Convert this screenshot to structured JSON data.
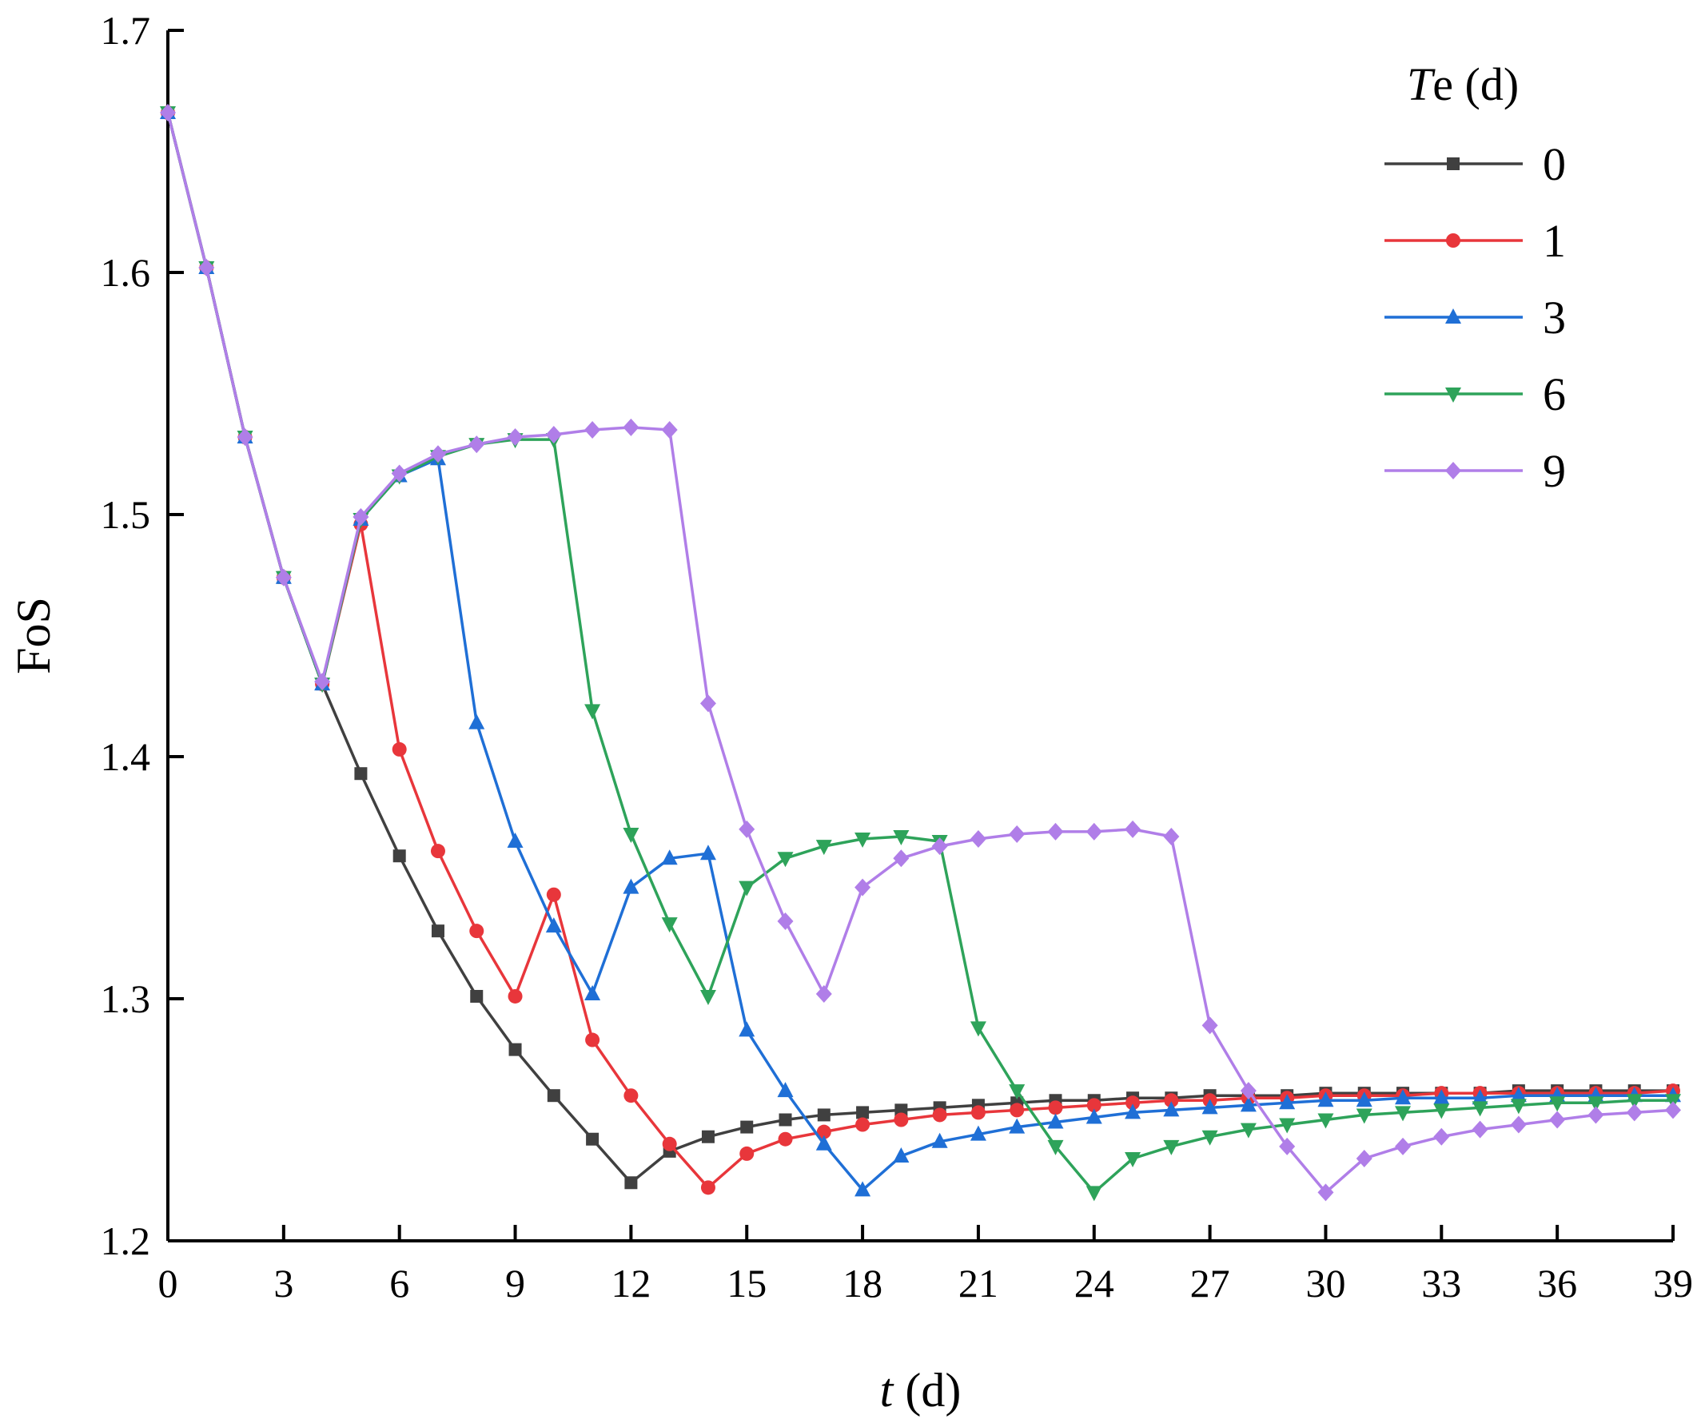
{
  "chart_data": {
    "type": "line",
    "xlabel_italic": "t",
    "xlabel_rest": " (d)",
    "ylabel": "FoS",
    "xlim": [
      0,
      39
    ],
    "ylim": [
      1.2,
      1.7
    ],
    "xticks": [
      0,
      3,
      6,
      9,
      12,
      15,
      18,
      21,
      24,
      27,
      30,
      33,
      36,
      39
    ],
    "yticks": [
      1.2,
      1.3,
      1.4,
      1.5,
      1.6,
      1.7
    ],
    "ytick_labels": [
      "1.2",
      "1.3",
      "1.4",
      "1.5",
      "1.6",
      "1.7"
    ],
    "grid": false,
    "legend_position": "top-right",
    "legend_title_italic": "T",
    "legend_title_rest": "e (d)",
    "x": [
      0,
      1,
      2,
      3,
      4,
      5,
      6,
      7,
      8,
      9,
      10,
      11,
      12,
      13,
      14,
      15,
      16,
      17,
      18,
      19,
      20,
      21,
      22,
      23,
      24,
      25,
      26,
      27,
      28,
      29,
      30,
      31,
      32,
      33,
      34,
      35,
      36,
      37,
      38,
      39
    ],
    "series": [
      {
        "name": "0",
        "color": "#404040",
        "marker": "square",
        "values": [
          1.666,
          1.602,
          1.532,
          1.474,
          1.43,
          1.393,
          1.359,
          1.328,
          1.301,
          1.279,
          1.26,
          1.242,
          1.224,
          1.237,
          1.243,
          1.247,
          1.25,
          1.252,
          1.253,
          1.254,
          1.255,
          1.256,
          1.257,
          1.258,
          1.258,
          1.259,
          1.259,
          1.26,
          1.26,
          1.26,
          1.261,
          1.261,
          1.261,
          1.261,
          1.261,
          1.262,
          1.262,
          1.262,
          1.262,
          1.262
        ]
      },
      {
        "name": "1",
        "color": "#e8363b",
        "marker": "circle",
        "values": [
          1.666,
          1.602,
          1.532,
          1.474,
          1.43,
          1.496,
          1.403,
          1.361,
          1.328,
          1.301,
          1.343,
          1.283,
          1.26,
          1.24,
          1.222,
          1.236,
          1.242,
          1.245,
          1.248,
          1.25,
          1.252,
          1.253,
          1.254,
          1.255,
          1.256,
          1.257,
          1.258,
          1.258,
          1.259,
          1.259,
          1.26,
          1.26,
          1.26,
          1.261,
          1.261,
          1.261,
          1.261,
          1.261,
          1.261,
          1.262
        ]
      },
      {
        "name": "3",
        "color": "#1f6fd6",
        "marker": "triangle-up",
        "values": [
          1.666,
          1.602,
          1.532,
          1.474,
          1.43,
          1.498,
          1.516,
          1.523,
          1.414,
          1.365,
          1.33,
          1.302,
          1.346,
          1.358,
          1.36,
          1.287,
          1.262,
          1.24,
          1.221,
          1.235,
          1.241,
          1.244,
          1.247,
          1.249,
          1.251,
          1.253,
          1.254,
          1.255,
          1.256,
          1.257,
          1.258,
          1.258,
          1.259,
          1.259,
          1.259,
          1.26,
          1.26,
          1.26,
          1.26,
          1.26
        ]
      },
      {
        "name": "6",
        "color": "#2ea35a",
        "marker": "triangle-down",
        "values": [
          1.666,
          1.602,
          1.532,
          1.474,
          1.43,
          1.498,
          1.516,
          1.524,
          1.529,
          1.531,
          1.531,
          1.419,
          1.368,
          1.331,
          1.301,
          1.346,
          1.358,
          1.363,
          1.366,
          1.367,
          1.365,
          1.288,
          1.262,
          1.239,
          1.22,
          1.234,
          1.239,
          1.243,
          1.246,
          1.248,
          1.25,
          1.252,
          1.253,
          1.254,
          1.255,
          1.256,
          1.257,
          1.257,
          1.258,
          1.258
        ]
      },
      {
        "name": "9",
        "color": "#b07ee8",
        "marker": "diamond",
        "values": [
          1.666,
          1.602,
          1.532,
          1.474,
          1.431,
          1.499,
          1.517,
          1.525,
          1.529,
          1.532,
          1.533,
          1.535,
          1.536,
          1.535,
          1.422,
          1.37,
          1.332,
          1.302,
          1.346,
          1.358,
          1.363,
          1.366,
          1.368,
          1.369,
          1.369,
          1.37,
          1.367,
          1.289,
          1.262,
          1.239,
          1.22,
          1.234,
          1.239,
          1.243,
          1.246,
          1.248,
          1.25,
          1.252,
          1.253,
          1.254
        ]
      }
    ]
  }
}
